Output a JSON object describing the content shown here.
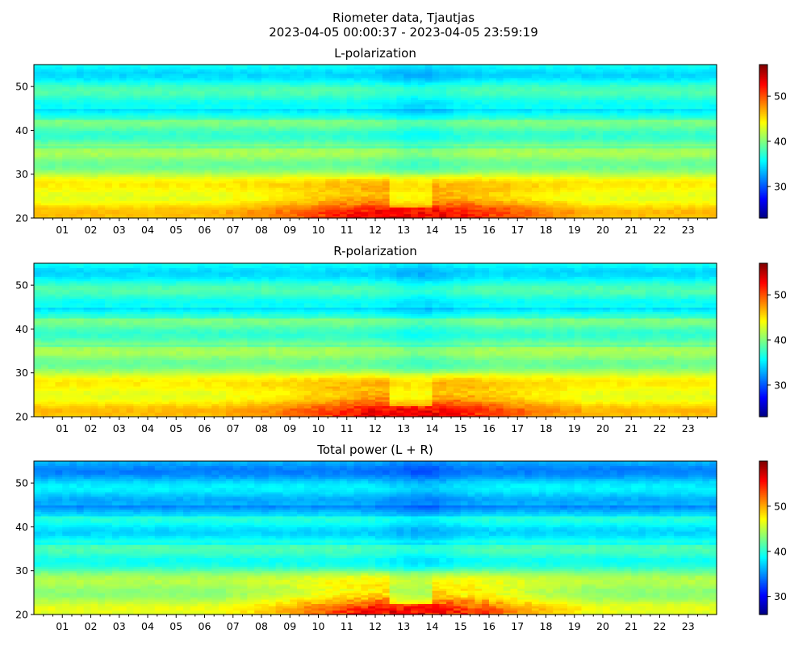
{
  "figure": {
    "title_line1": "Riometer data, Tjautjas",
    "title_line2": "2023-04-05 00:00:37 - 2023-04-05 23:59:19"
  },
  "chart_data": [
    {
      "type": "heatmap",
      "title": "L-polarization",
      "x_ticks": [
        "01",
        "02",
        "03",
        "04",
        "05",
        "06",
        "07",
        "08",
        "09",
        "10",
        "11",
        "12",
        "13",
        "14",
        "15",
        "16",
        "17",
        "18",
        "19",
        "20",
        "21",
        "22",
        "23"
      ],
      "xlim": [
        0,
        24
      ],
      "y_ticks": [
        20,
        30,
        40,
        50
      ],
      "ylim": [
        20,
        55
      ],
      "colorbar": {
        "ticks": [
          30,
          40,
          50
        ],
        "range": [
          23,
          57
        ],
        "colormap": "jet"
      },
      "peak_value": 53
    },
    {
      "type": "heatmap",
      "title": "R-polarization",
      "x_ticks": [
        "01",
        "02",
        "03",
        "04",
        "05",
        "06",
        "07",
        "08",
        "09",
        "10",
        "11",
        "12",
        "13",
        "14",
        "15",
        "16",
        "17",
        "18",
        "19",
        "20",
        "21",
        "22",
        "23"
      ],
      "xlim": [
        0,
        24
      ],
      "y_ticks": [
        20,
        30,
        40,
        50
      ],
      "ylim": [
        20,
        55
      ],
      "colorbar": {
        "ticks": [
          30,
          40,
          50
        ],
        "range": [
          23,
          57
        ],
        "colormap": "jet"
      },
      "peak_value": 53
    },
    {
      "type": "heatmap",
      "title": "Total power (L + R)",
      "x_ticks": [
        "01",
        "02",
        "03",
        "04",
        "05",
        "06",
        "07",
        "08",
        "09",
        "10",
        "11",
        "12",
        "13",
        "14",
        "15",
        "16",
        "17",
        "18",
        "19",
        "20",
        "21",
        "22",
        "23"
      ],
      "xlim": [
        0,
        24
      ],
      "y_ticks": [
        20,
        30,
        40,
        50
      ],
      "ylim": [
        20,
        55
      ],
      "colorbar": {
        "ticks": [
          30,
          40,
          50
        ],
        "range": [
          26,
          60
        ],
        "colormap": "jet"
      },
      "peak_value": 56
    }
  ]
}
